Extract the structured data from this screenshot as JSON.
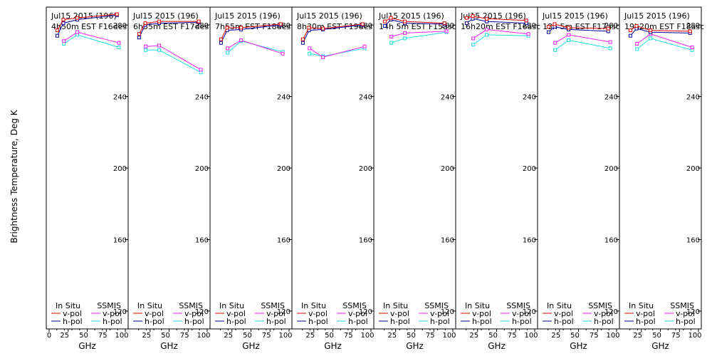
{
  "chart_data": {
    "type": "line",
    "ylabel": "Brightness Temperature, Deg K",
    "xlabel": "GHz",
    "xlim": [
      0,
      100
    ],
    "ylim": [
      110,
      290
    ],
    "yticks": [
      120,
      160,
      200,
      240,
      280
    ],
    "xticks_first": [
      "0",
      "25",
      "50",
      "75",
      "100"
    ],
    "xticks": [
      "25",
      "50",
      "75",
      "100"
    ],
    "grid": false,
    "colors": {
      "insitu_v": "#dd0000",
      "insitu_h": "#000099",
      "ssmis_v": "#ee22ee",
      "ssmis_h": "#22dddd"
    },
    "legend": {
      "insitu_title": "In Situ",
      "ssmis_title": "SSMIS",
      "v_label": "v-pol",
      "h_label": "h-pol"
    },
    "panels": [
      {
        "title1": "Jul15 2015 (196)",
        "title2": "4h50m EST F16des",
        "insitu_v": [
          [
            10.7,
            277
          ],
          [
            18.7,
            283
          ],
          [
            37,
            284
          ],
          [
            89,
            286
          ]
        ],
        "insitu_h": [
          [
            10.7,
            274
          ],
          [
            18.7,
            281
          ],
          [
            37,
            283
          ],
          [
            89,
            285.5
          ]
        ],
        "ssmis_v": [
          [
            19.35,
            271
          ],
          [
            37,
            276
          ],
          [
            91.65,
            270
          ]
        ],
        "ssmis_h": [
          [
            19.35,
            269.5
          ],
          [
            37,
            274.5
          ],
          [
            91.65,
            267.5
          ]
        ]
      },
      {
        "title1": "Jul15 2015 (196)",
        "title2": "6h35m EST F17des",
        "insitu_v": [
          [
            10.7,
            275
          ],
          [
            18.7,
            281
          ],
          [
            37,
            282
          ],
          [
            89,
            282
          ]
        ],
        "insitu_h": [
          [
            10.7,
            273
          ],
          [
            18.7,
            280
          ],
          [
            37,
            281
          ],
          [
            89,
            281.5
          ]
        ],
        "ssmis_v": [
          [
            19.35,
            268
          ],
          [
            37,
            268.5
          ],
          [
            91.65,
            255
          ]
        ],
        "ssmis_h": [
          [
            19.35,
            266
          ],
          [
            37,
            266
          ],
          [
            91.65,
            253.5
          ]
        ]
      },
      {
        "title1": "Jul15 2015 (196)",
        "title2": "7h55m EST F18des",
        "insitu_v": [
          [
            10.7,
            272
          ],
          [
            18.7,
            278.5
          ],
          [
            37,
            278.5
          ],
          [
            89,
            280.5
          ]
        ],
        "insitu_h": [
          [
            10.7,
            270
          ],
          [
            18.7,
            277
          ],
          [
            37,
            277.5
          ],
          [
            89,
            280
          ]
        ],
        "ssmis_v": [
          [
            19.35,
            267
          ],
          [
            37,
            271.5
          ],
          [
            91.65,
            264
          ]
        ],
        "ssmis_h": [
          [
            19.35,
            264.5
          ],
          [
            37,
            271
          ],
          [
            91.65,
            265
          ]
        ]
      },
      {
        "title1": "Jul15 2015 (196)",
        "title2": "8h30m EST F19des",
        "insitu_v": [
          [
            10.7,
            272
          ],
          [
            18.7,
            278.5
          ],
          [
            37,
            278
          ],
          [
            89,
            280.5
          ]
        ],
        "insitu_h": [
          [
            10.7,
            270
          ],
          [
            18.7,
            277
          ],
          [
            37,
            277.5
          ],
          [
            89,
            280
          ]
        ],
        "ssmis_v": [
          [
            19.35,
            267
          ],
          [
            37,
            262
          ],
          [
            91.65,
            268
          ]
        ],
        "ssmis_h": [
          [
            19.35,
            264
          ],
          [
            37,
            262.5
          ],
          [
            91.65,
            267
          ]
        ]
      },
      {
        "title1": "Jul15 2015 (196)",
        "title2": "14h 5m EST F15asc",
        "insitu_v": [
          [
            10.7,
            282
          ],
          [
            18.7,
            284
          ],
          [
            37,
            282
          ],
          [
            89,
            281
          ]
        ],
        "insitu_h": [
          [
            10.7,
            279.5
          ],
          [
            18.7,
            283
          ],
          [
            37,
            281
          ],
          [
            89,
            280.5
          ]
        ],
        "ssmis_v": [
          [
            19.35,
            273.5
          ],
          [
            37,
            275.5
          ],
          [
            91.65,
            276.5
          ]
        ],
        "ssmis_h": [
          [
            19.35,
            270
          ],
          [
            37,
            272.5
          ],
          [
            91.65,
            276
          ]
        ]
      },
      {
        "title1": "Jul15 2015 (196)",
        "title2": "16h20m EST F16asc",
        "insitu_v": [
          [
            10.7,
            284
          ],
          [
            18.7,
            285
          ],
          [
            37,
            283.5
          ],
          [
            89,
            282.5
          ]
        ],
        "insitu_h": [
          [
            10.7,
            281
          ],
          [
            18.7,
            283.5
          ],
          [
            37,
            282
          ],
          [
            89,
            281
          ]
        ],
        "ssmis_v": [
          [
            19.35,
            272.5
          ],
          [
            37,
            277.5
          ],
          [
            91.65,
            275
          ]
        ],
        "ssmis_h": [
          [
            19.35,
            269
          ],
          [
            37,
            274.5
          ],
          [
            91.65,
            274
          ]
        ]
      },
      {
        "title1": "Jul15 2015 (196)",
        "title2": "18h 5m EST F17asc",
        "insitu_v": [
          [
            10.7,
            279
          ],
          [
            18.7,
            280.5
          ],
          [
            37,
            278.5
          ],
          [
            89,
            278
          ]
        ],
        "insitu_h": [
          [
            10.7,
            276
          ],
          [
            18.7,
            279
          ],
          [
            37,
            277.5
          ],
          [
            89,
            276.5
          ]
        ],
        "ssmis_v": [
          [
            19.35,
            270
          ],
          [
            37,
            274.5
          ],
          [
            91.65,
            270.5
          ]
        ],
        "ssmis_h": [
          [
            19.35,
            266
          ],
          [
            37,
            271.5
          ],
          [
            91.65,
            267
          ]
        ]
      },
      {
        "title1": "Jul15 2015 (196)",
        "title2": "19h20m EST F18asc",
        "insitu_v": [
          [
            10.7,
            277
          ],
          [
            18.7,
            279.5
          ],
          [
            37,
            277
          ],
          [
            89,
            276.5
          ]
        ],
        "insitu_h": [
          [
            10.7,
            274
          ],
          [
            18.7,
            278
          ],
          [
            37,
            276
          ],
          [
            89,
            275.5
          ]
        ],
        "ssmis_v": [
          [
            19.35,
            269.5
          ],
          [
            37,
            275
          ],
          [
            91.65,
            267.5
          ]
        ],
        "ssmis_h": [
          [
            19.35,
            266.5
          ],
          [
            37,
            272.5
          ],
          [
            91.65,
            266
          ]
        ]
      }
    ]
  }
}
